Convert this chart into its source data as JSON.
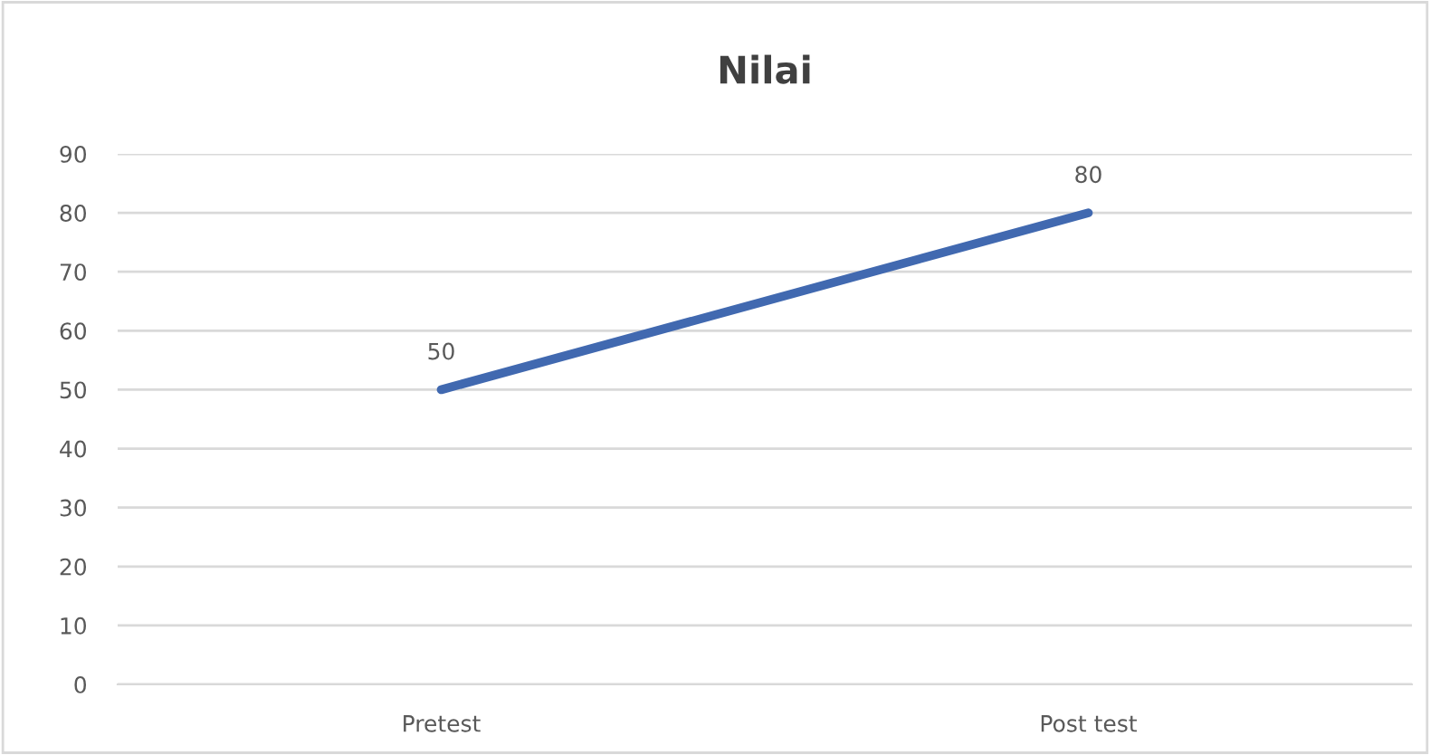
{
  "chart_data": {
    "type": "line",
    "title": "Nilai",
    "categories": [
      "Pretest",
      "Post test"
    ],
    "series": [
      {
        "color": "#4169b0",
        "values": [
          50,
          80
        ]
      }
    ],
    "ylim": [
      0,
      90
    ],
    "yticks": [
      0,
      10,
      20,
      30,
      40,
      50,
      60,
      70,
      80,
      90
    ],
    "grid": "y",
    "data_labels": true,
    "legend": false,
    "marker": "none",
    "line_style": "solid"
  }
}
